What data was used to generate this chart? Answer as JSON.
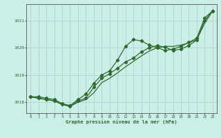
{
  "background_color": "#cceee8",
  "grid_color": "#aacccc",
  "line_color": "#2d6a2d",
  "xlabel": "Graphe pression niveau de la mer (hPa)",
  "xlim": [
    -0.5,
    23.5
  ],
  "ylim": [
    1017.6,
    1021.6
  ],
  "yticks": [
    1018,
    1019,
    1020,
    1021
  ],
  "xticks": [
    0,
    1,
    2,
    3,
    4,
    5,
    6,
    7,
    8,
    9,
    10,
    11,
    12,
    13,
    14,
    15,
    16,
    17,
    18,
    19,
    20,
    21,
    22,
    23
  ],
  "hours": [
    0,
    1,
    2,
    3,
    4,
    5,
    6,
    7,
    8,
    9,
    10,
    11,
    12,
    13,
    14,
    15,
    16,
    17,
    18,
    19,
    20,
    21,
    22,
    23
  ],
  "pressure_line1": [
    1018.2,
    1018.2,
    1018.15,
    1018.1,
    1017.95,
    1017.88,
    1018.1,
    1018.3,
    1018.7,
    1019.0,
    1019.15,
    1019.55,
    1020.05,
    1020.3,
    1020.25,
    1020.1,
    1020.0,
    1019.9,
    1019.95,
    1020.05,
    1020.2,
    1020.35,
    1021.1,
    1021.35
  ],
  "pressure_line2": [
    1018.2,
    1018.15,
    1018.1,
    1018.05,
    1017.92,
    1017.85,
    1018.05,
    1018.15,
    1018.55,
    1018.88,
    1019.05,
    1019.25,
    1019.48,
    1019.62,
    1019.85,
    1020.0,
    1020.08,
    1020.02,
    1019.9,
    1019.95,
    1020.08,
    1020.28,
    1021.0,
    1021.35
  ],
  "pressure_line3": [
    1018.2,
    1018.15,
    1018.1,
    1018.05,
    1017.92,
    1017.85,
    1018.0,
    1018.1,
    1018.35,
    1018.72,
    1018.88,
    1019.08,
    1019.3,
    1019.5,
    1019.7,
    1019.88,
    1020.0,
    1020.05,
    1020.05,
    1020.1,
    1020.18,
    1020.3,
    1020.9,
    1021.35
  ]
}
